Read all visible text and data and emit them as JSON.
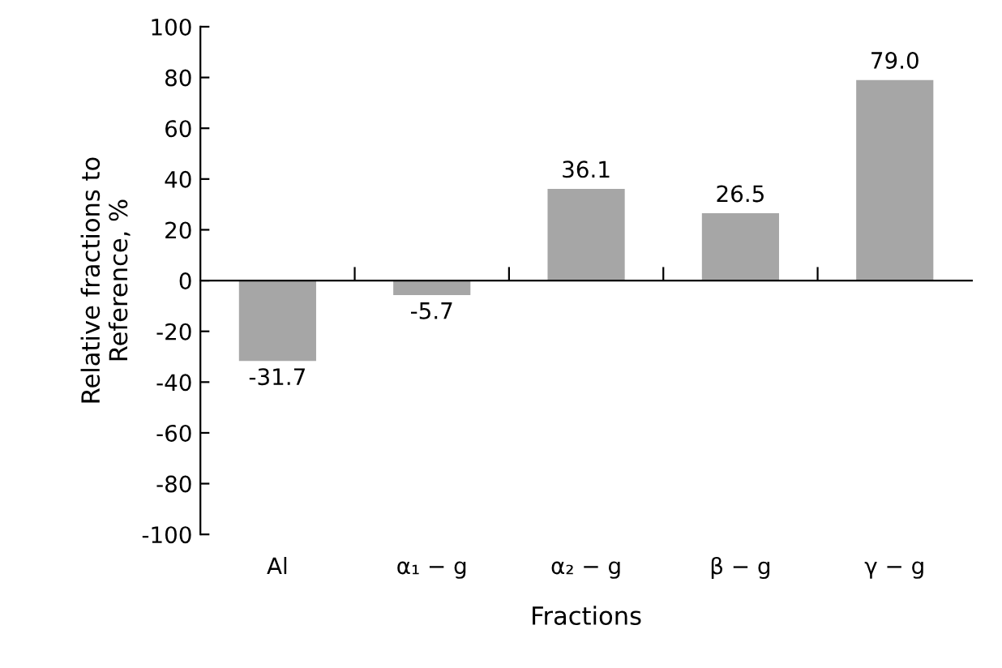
{
  "chart_data": {
    "type": "bar",
    "xlabel": "Fractions",
    "ylabel": "Relative fractions to\nReference, %",
    "categories": [
      "Al",
      "α₁ − g",
      "α₂ − g",
      "β − g",
      "γ − g"
    ],
    "values": [
      -31.7,
      -5.7,
      36.1,
      26.5,
      79.0
    ],
    "value_labels": [
      "-31.7",
      "-5.7",
      "36.1",
      "26.5",
      "79.0"
    ],
    "color": "#a6a6a6",
    "ylim": [
      -100,
      100
    ],
    "yticks": [
      -100,
      -80,
      -60,
      -40,
      -20,
      0,
      20,
      40,
      60,
      80,
      100
    ]
  }
}
